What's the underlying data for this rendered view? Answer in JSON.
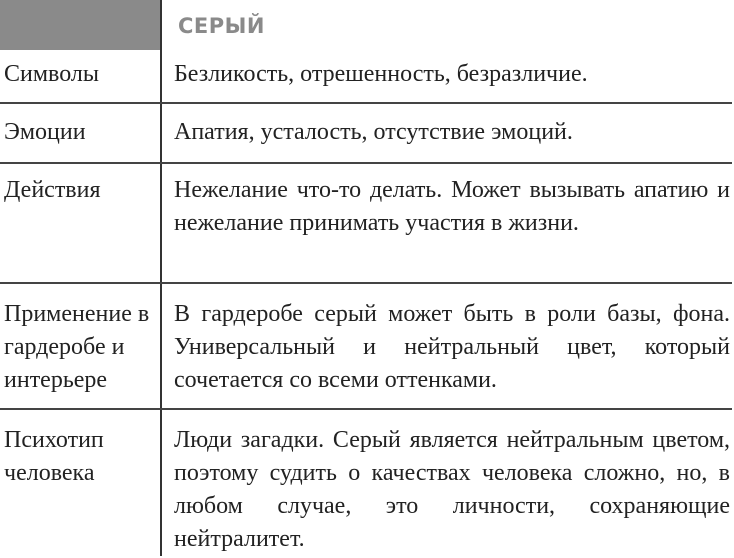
{
  "header": {
    "title": "СЕРЫЙ",
    "accent_color": "#8a8a8a"
  },
  "rows": [
    {
      "label": "Символы",
      "text": "Безликость, отрешенность, безразличие."
    },
    {
      "label": "Эмоции",
      "text": "Апатия, усталость, отсутствие эмоций."
    },
    {
      "label": "Действия",
      "text": "Нежелание что-то делать. Может вызывать апатию и нежелание принимать участия в жизни."
    },
    {
      "label": "Применение в гардеробе и интерьере",
      "text": "В гардеробе серый может быть в роли базы, фона. Универсальный и нейтральный цвет, который сочетается со всеми оттенками."
    },
    {
      "label": "Психотип человека",
      "text": "Люди загадки. Серый является нейтральным цветом, поэтому судить о качествах человека сложно, но, в любом случае, это личности, сохраняющие нейтралитет."
    }
  ]
}
